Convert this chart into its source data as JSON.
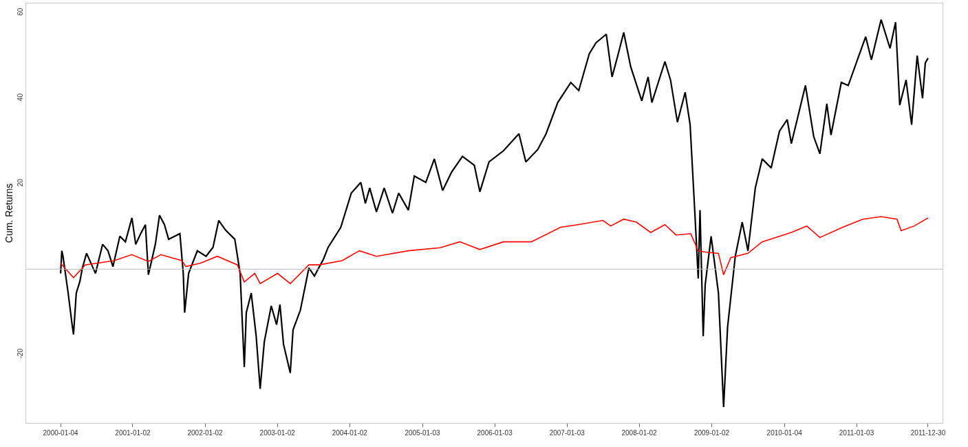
{
  "chart_data": {
    "type": "line",
    "ylabel": "Cum. Returns",
    "xlim": [
      "1999-07-14",
      "2012-03-12"
    ],
    "ylim": [
      -36,
      62.2
    ],
    "xticks": [
      "2000-01-04",
      "2001-01-02",
      "2002-01-02",
      "2003-01-02",
      "2004-01-02",
      "2005-01-03",
      "2006-01-03",
      "2007-01-03",
      "2008-01-02",
      "2009-01-02",
      "2010-01-04",
      "2011-01-03",
      "2011-12-30"
    ],
    "yticks": [
      -20,
      20,
      40,
      60
    ],
    "grid": false,
    "marker": "none",
    "line_style": "solid",
    "ref_lines": [
      {
        "axis": "y",
        "value": 0,
        "color": "#bbbbbb"
      }
    ],
    "series": [
      {
        "color": "#000000",
        "x": [
          "2000-01-04",
          "2000-01-10",
          "2000-01-16",
          "2000-02-11",
          "2000-03-02",
          "2000-03-09",
          "2000-03-23",
          "2000-04-10",
          "2000-04-23",
          "2000-05-14",
          "2000-06-28",
          "2000-08-03",
          "2000-08-30",
          "2000-09-24",
          "2000-10-29",
          "2000-11-26",
          "2000-12-29",
          "2001-01-17",
          "2001-02-11",
          "2001-03-07",
          "2001-03-22",
          "2001-04-26",
          "2001-05-17",
          "2001-06-11",
          "2001-07-02",
          "2001-08-28",
          "2001-09-14",
          "2001-09-21",
          "2001-10-11",
          "2001-11-24",
          "2002-01-07",
          "2002-02-11",
          "2002-03-12",
          "2002-04-16",
          "2002-06-01",
          "2002-06-28",
          "2002-07-19",
          "2002-07-29",
          "2002-08-23",
          "2002-09-17",
          "2002-10-07",
          "2002-10-28",
          "2002-12-02",
          "2002-12-29",
          "2003-01-15",
          "2003-02-02",
          "2003-03-08",
          "2003-03-22",
          "2003-04-28",
          "2003-06-10",
          "2003-07-08",
          "2003-08-23",
          "2003-09-15",
          "2003-11-18",
          "2004-01-10",
          "2004-02-27",
          "2004-03-21",
          "2004-04-12",
          "2004-05-16",
          "2004-06-24",
          "2004-08-05",
          "2004-09-05",
          "2004-10-24",
          "2004-11-23",
          "2005-01-20",
          "2005-03-04",
          "2005-04-15",
          "2005-05-30",
          "2005-07-24",
          "2005-09-22",
          "2005-10-20",
          "2005-12-05",
          "2006-02-16",
          "2006-05-05",
          "2006-06-09",
          "2006-08-08",
          "2006-09-19",
          "2006-11-17",
          "2007-01-22",
          "2007-03-03",
          "2007-04-25",
          "2007-05-29",
          "2007-07-20",
          "2007-08-18",
          "2007-09-15",
          "2007-10-16",
          "2007-11-20",
          "2008-01-15",
          "2008-02-16",
          "2008-03-06",
          "2008-05-11",
          "2008-06-08",
          "2008-07-13",
          "2008-08-21",
          "2008-09-15",
          "2008-10-09",
          "2008-10-26",
          "2008-11-04",
          "2008-11-20",
          "2008-11-30",
          "2008-12-30",
          "2009-02-05",
          "2009-03-03",
          "2009-03-23",
          "2009-05-01",
          "2009-06-05",
          "2009-07-04",
          "2009-08-10",
          "2009-09-14",
          "2009-10-29",
          "2009-12-10",
          "2010-01-18",
          "2010-02-08",
          "2010-04-20",
          "2010-06-01",
          "2010-07-02",
          "2010-08-06",
          "2010-08-27",
          "2010-10-18",
          "2010-11-22",
          "2011-02-18",
          "2011-03-19",
          "2011-05-07",
          "2011-06-21",
          "2011-07-19",
          "2011-08-09",
          "2011-09-10",
          "2011-10-08",
          "2011-11-05",
          "2011-12-02",
          "2011-12-16",
          "2011-12-30"
        ],
        "values": [
          -1,
          4.3,
          3,
          -5.6,
          -13,
          -15.3,
          -5.6,
          -2.9,
          0.3,
          3.7,
          -1,
          5.8,
          4.3,
          0.6,
          7.7,
          6.4,
          12,
          5.8,
          8.3,
          10.4,
          -1.3,
          5.8,
          12.6,
          10.4,
          7,
          8.3,
          -1,
          -10.2,
          -1,
          4.3,
          3,
          5.1,
          11.4,
          9.1,
          7,
          -1,
          -22.9,
          -10.2,
          -5.6,
          -15.7,
          -28,
          -17,
          -8.6,
          -13,
          -8.3,
          -17.6,
          -24.3,
          -14.2,
          -9.6,
          0.3,
          -1.6,
          2.4,
          5.1,
          9.8,
          17.8,
          20.3,
          15.4,
          19,
          13.4,
          19,
          13.1,
          17.8,
          13.8,
          21.8,
          20.3,
          25.8,
          18.4,
          22.7,
          26.4,
          24.3,
          18.1,
          25.1,
          27.7,
          31.7,
          25.1,
          28,
          31.7,
          39,
          43.7,
          41.8,
          50.4,
          53,
          55,
          45,
          49.8,
          55.4,
          47.4,
          39.4,
          45,
          39,
          48.6,
          44.3,
          34.4,
          41.4,
          33.8,
          13.1,
          -2.2,
          13.8,
          -15.7,
          -3.7,
          7.7,
          -5.6,
          -32.3,
          -13.6,
          3,
          11,
          4.3,
          19,
          25.8,
          23.7,
          32.3,
          35,
          29.4,
          43,
          31,
          27,
          38.7,
          31.4,
          43.7,
          43,
          54.4,
          49,
          58.4,
          51.7,
          57.8,
          38.4,
          44.3,
          33.8,
          50,
          40,
          48.3,
          49.4
        ]
      },
      {
        "color": "#ff0000",
        "x": [
          "2000-01-04",
          "2000-03-09",
          "2000-05-07",
          "2000-10-01",
          "2000-12-28",
          "2001-03-22",
          "2001-05-24",
          "2001-09-07",
          "2001-09-27",
          "2001-12-09",
          "2002-03-05",
          "2002-06-14",
          "2002-07-19",
          "2002-09-10",
          "2002-10-07",
          "2003-01-03",
          "2003-03-08",
          "2003-06-10",
          "2003-08-02",
          "2003-11-25",
          "2004-02-20",
          "2004-05-16",
          "2004-10-24",
          "2005-04-02",
          "2005-07-11",
          "2005-10-20",
          "2006-02-16",
          "2006-07-07",
          "2006-12-01",
          "2007-02-26",
          "2007-07-03",
          "2007-08-11",
          "2007-10-16",
          "2007-12-19",
          "2008-02-29",
          "2008-05-11",
          "2008-07-06",
          "2008-09-18",
          "2008-10-26",
          "2008-11-30",
          "2009-02-05",
          "2009-03-03",
          "2009-04-08",
          "2009-07-04",
          "2009-09-14",
          "2010-02-08",
          "2010-04-27",
          "2010-07-02",
          "2010-10-25",
          "2011-02-04",
          "2011-05-07",
          "2011-07-26",
          "2011-08-16",
          "2011-10-21",
          "2011-12-30"
        ],
        "values": [
          1.4,
          -2,
          1,
          2,
          3.4,
          1.8,
          3.4,
          2,
          0.6,
          1.4,
          3,
          1,
          -3,
          -1,
          -3.4,
          -1,
          -3.4,
          1,
          1,
          2,
          4.3,
          3,
          4.3,
          5,
          6.4,
          4.6,
          6.4,
          6.4,
          9.8,
          10.4,
          11.4,
          10.1,
          11.7,
          11,
          8.6,
          10.4,
          8,
          8.3,
          4.3,
          4,
          3.7,
          -1.3,
          2.7,
          3.7,
          6.4,
          8.6,
          10.1,
          7.4,
          9.8,
          11.7,
          12.3,
          11.7,
          9,
          10.1,
          12
        ]
      }
    ]
  }
}
